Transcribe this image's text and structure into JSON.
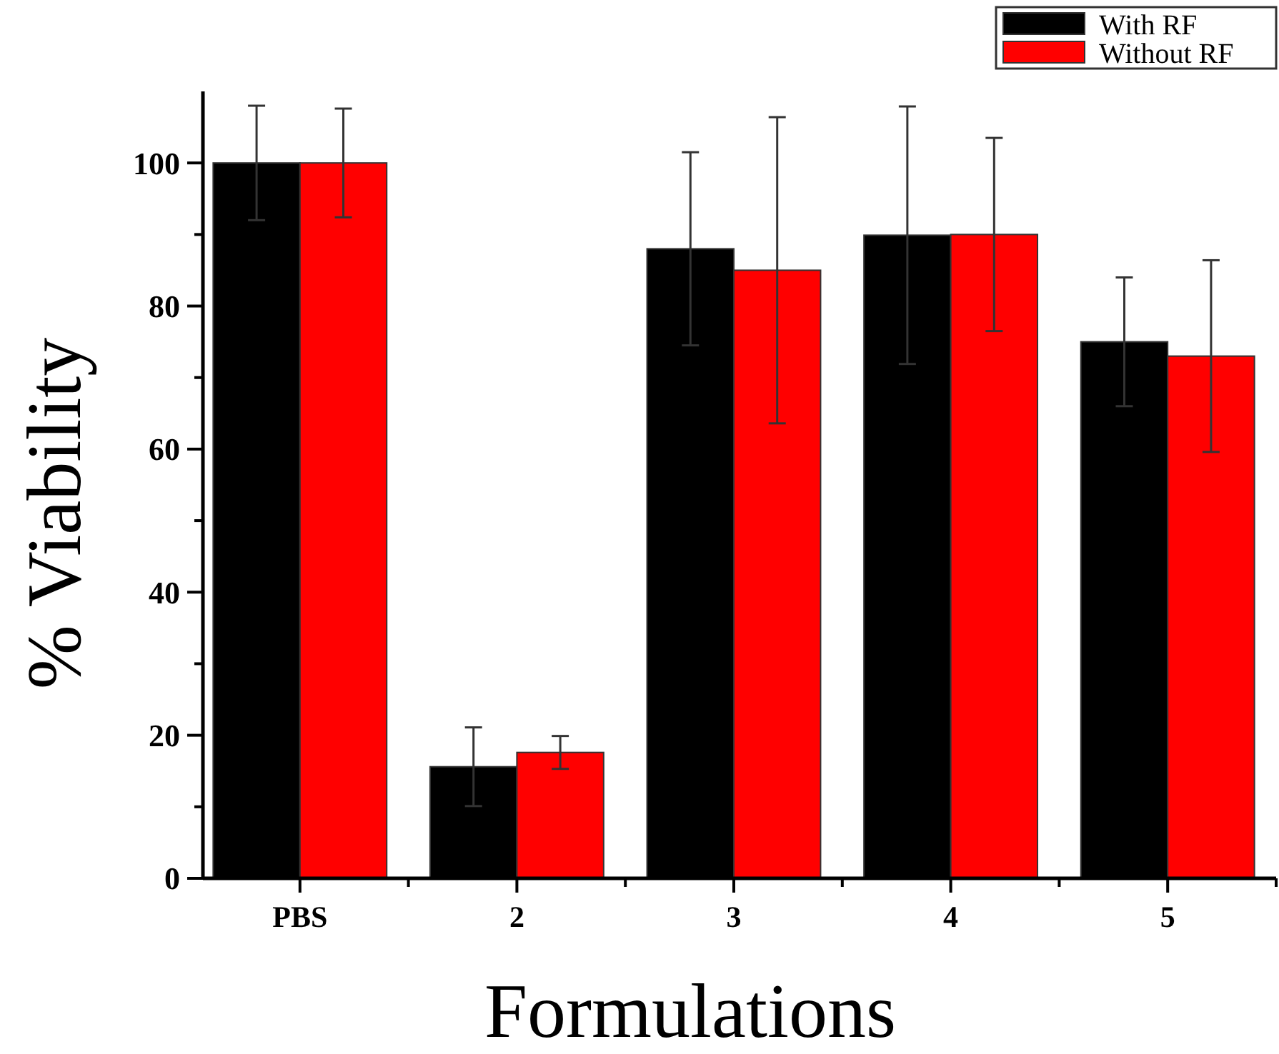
{
  "chart_data": {
    "type": "bar",
    "xlabel": "Formulations",
    "ylabel": "% Viability",
    "categories": [
      "PBS",
      "2",
      "3",
      "4",
      "5"
    ],
    "series": [
      {
        "name": "With RF",
        "color": "#000000",
        "values": [
          100,
          15.6,
          88,
          89.9,
          75
        ],
        "errors": [
          8,
          5.5,
          13.5,
          18,
          9
        ]
      },
      {
        "name": "Without RF",
        "color": "#ff0000",
        "values": [
          100,
          17.6,
          85,
          90,
          73
        ],
        "errors": [
          7.6,
          2.3,
          21.4,
          13.5,
          13.4
        ]
      }
    ],
    "ylim": [
      0,
      110
    ],
    "yticks": [
      0,
      {
        "value": 10,
        "label": null
      },
      20,
      {
        "value": 30,
        "label": null
      },
      40,
      {
        "value": 50,
        "label": null
      },
      60,
      {
        "value": 70,
        "label": null
      },
      80,
      {
        "value": 90,
        "label": null
      },
      100
    ],
    "legend": "top right",
    "grid": false
  }
}
